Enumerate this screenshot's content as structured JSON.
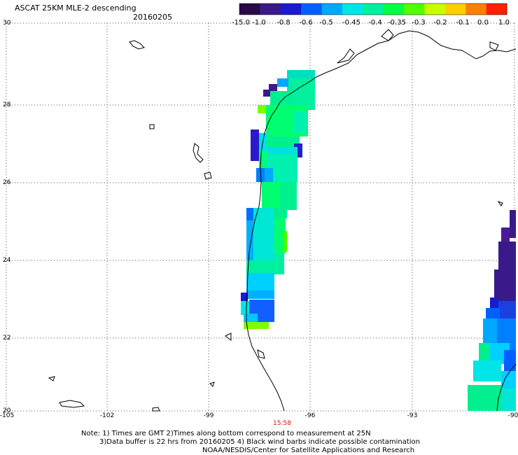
{
  "header": {
    "title": "ASCAT 25KM MLE-2 descending",
    "date": "20160205"
  },
  "colorbar": {
    "labels": [
      "-15.0",
      "-1.0",
      "-0.8",
      "-0.6",
      "-0.5",
      "-0.45",
      "-0.4",
      "-0.35",
      "-0.3",
      "-0.2",
      "-0.1",
      "0.0",
      "1.0"
    ],
    "colors": [
      "#2a0a44",
      "#3a1a8a",
      "#1a1ad0",
      "#0060ff",
      "#00a8ff",
      "#00e6e6",
      "#00f0a0",
      "#00ff40",
      "#50ff00",
      "#c8ff00",
      "#ffd000",
      "#ff8000",
      "#ff2000"
    ]
  },
  "axes": {
    "y_labels": [
      "30",
      "28",
      "26",
      "24",
      "22",
      "20"
    ],
    "x_labels": [
      "-105",
      "-102",
      "-99",
      "-96",
      "-93",
      "-90"
    ],
    "grid": "dotted"
  },
  "timestamp": "15:58",
  "notes": {
    "line1": "Note: 1) Times are GMT 2)Times along bottom correspond to measurement at 25N",
    "line2": "3)Data buffer is 22 hrs from 20160205 4) Black wind barbs indicate possible contamination",
    "line3": "NOAA/NESDIS/Center for Satellite Applications and Research"
  }
}
